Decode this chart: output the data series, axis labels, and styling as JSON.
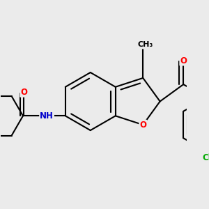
{
  "bg_color": "#ebebeb",
  "bond_color": "#000000",
  "bond_width": 1.5,
  "atom_colors": {
    "O": "#ff0000",
    "N": "#0000cc",
    "Cl": "#00aa00",
    "C": "#000000"
  },
  "font_size_atom": 8.5,
  "font_size_methyl": 8.0
}
